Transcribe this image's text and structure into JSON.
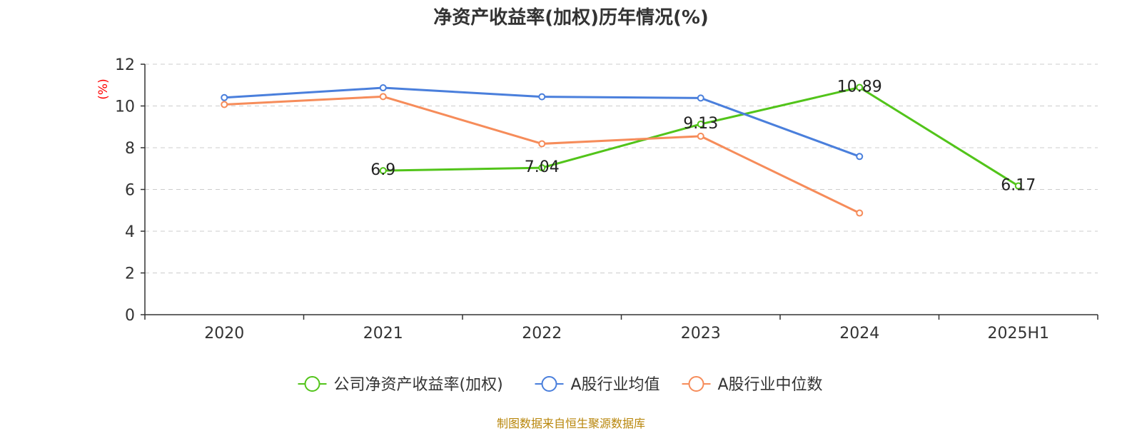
{
  "chart_data": {
    "type": "line",
    "title": "净资产收益率(加权)历年情况(%)",
    "ylabel": "(%)",
    "xlabel": "",
    "categories": [
      "2020",
      "2021",
      "2022",
      "2023",
      "2024",
      "2025H1"
    ],
    "ylim": [
      0,
      12
    ],
    "yticks": [
      0,
      2,
      4,
      6,
      8,
      10,
      12
    ],
    "grid": true,
    "legend_position": "bottom",
    "series": [
      {
        "name": "公司净资产收益率(加权)",
        "color": "#52c41a",
        "values": [
          null,
          6.9,
          7.04,
          9.13,
          10.89,
          6.17
        ],
        "data_labels": [
          "",
          "6.9",
          "7.04",
          "9.13",
          "10.89",
          "6.17"
        ]
      },
      {
        "name": "A股行业均值",
        "color": "#4a7fdc",
        "values": [
          10.4,
          10.87,
          10.44,
          10.38,
          7.58,
          null
        ],
        "data_labels": []
      },
      {
        "name": "A股行业中位数",
        "color": "#f68c5a",
        "values": [
          10.07,
          10.45,
          8.19,
          8.55,
          4.87,
          null
        ],
        "data_labels": []
      }
    ]
  },
  "source": "制图数据来自恒生聚源数据库",
  "colors": {
    "axis": "#333333",
    "grid": "#cccccc",
    "ylabel": "#ff0000"
  }
}
